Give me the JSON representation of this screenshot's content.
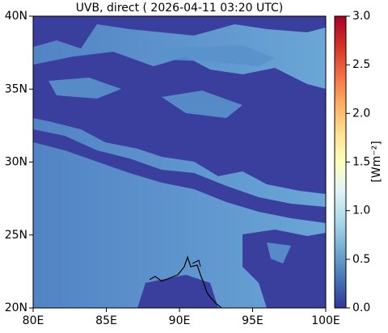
{
  "chart_data": {
    "type": "map",
    "title": "UVB, direct ( 2026-04-11 03:20 UTC)",
    "xlim": [
      80,
      100
    ],
    "xticks": [
      {
        "value": 80,
        "label": "80E"
      },
      {
        "value": 85,
        "label": "85E"
      },
      {
        "value": 90,
        "label": "90E"
      },
      {
        "value": 95,
        "label": "95E"
      },
      {
        "value": 100,
        "label": "100E"
      }
    ],
    "ylim": [
      20,
      40
    ],
    "yticks": [
      {
        "value": 20,
        "label": "20N"
      },
      {
        "value": 25,
        "label": "25N"
      },
      {
        "value": 30,
        "label": "30N"
      },
      {
        "value": 35,
        "label": "35N"
      },
      {
        "value": 40,
        "label": "40N"
      }
    ],
    "colorbar": {
      "label": "[Wm⁻²]",
      "lim": [
        0,
        3
      ],
      "ticks": [
        {
          "value": 0,
          "label": "0.0"
        },
        0.5,
        {
          "value": 1,
          "label": "1.0"
        },
        1.5,
        {
          "value": 2,
          "label": "2.0"
        },
        2.5,
        {
          "value": 3,
          "label": "3.0"
        }
      ],
      "colormap": [
        "#313695",
        "#4575b4",
        "#74add1",
        "#abd9e9",
        "#e0f3f8",
        "#ffffbf",
        "#fee090",
        "#fdae61",
        "#f46d43",
        "#d73027",
        "#a50026"
      ]
    }
  }
}
